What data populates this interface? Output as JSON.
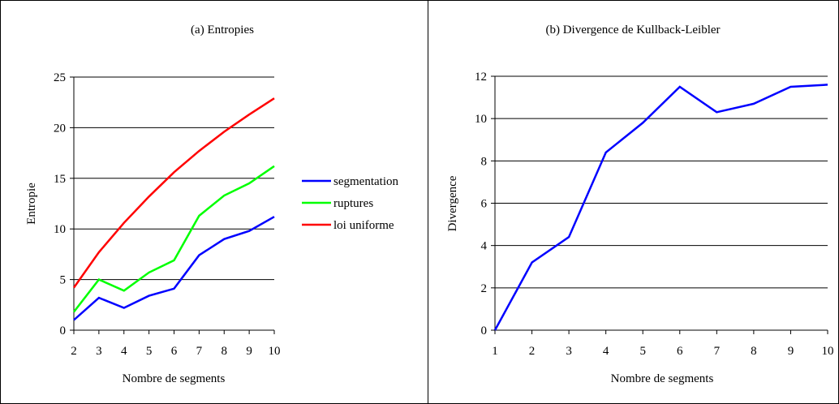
{
  "chart_data": [
    {
      "type": "line",
      "title": "(a) Entropies",
      "xlabel": "Nombre de segments",
      "ylabel": "Entropie",
      "categories": [
        "2",
        "3",
        "4",
        "5",
        "6",
        "7",
        "8",
        "9",
        "10"
      ],
      "ylim": [
        0,
        25
      ],
      "yticks": [
        "0",
        "5",
        "10",
        "15",
        "20",
        "25"
      ],
      "grid": true,
      "legend_position": "right",
      "series": [
        {
          "name": "segmentation",
          "color": "#0000ff",
          "values": [
            1.0,
            3.2,
            2.2,
            3.4,
            4.1,
            7.4,
            9.0,
            9.8,
            11.2
          ]
        },
        {
          "name": "ruptures",
          "color": "#00ff00",
          "values": [
            1.8,
            5.0,
            3.9,
            5.7,
            6.9,
            11.3,
            13.3,
            14.5,
            16.2
          ]
        },
        {
          "name": "loi uniforme",
          "color": "#ff0000",
          "values": [
            4.2,
            7.7,
            10.6,
            13.2,
            15.6,
            17.7,
            19.6,
            21.3,
            22.9
          ]
        }
      ]
    },
    {
      "type": "line",
      "title": "(b) Divergence de Kullback-Leibler",
      "xlabel": "Nombre de segments",
      "ylabel": "Divergence",
      "categories": [
        "1",
        "2",
        "3",
        "4",
        "5",
        "6",
        "7",
        "8",
        "9",
        "10"
      ],
      "ylim": [
        0,
        12
      ],
      "yticks": [
        "0",
        "2",
        "4",
        "6",
        "8",
        "10",
        "12"
      ],
      "grid": true,
      "series": [
        {
          "color": "#0000ff",
          "values": [
            0.0,
            3.2,
            4.4,
            8.4,
            9.8,
            11.5,
            10.3,
            10.7,
            11.5,
            11.6
          ]
        }
      ]
    }
  ]
}
